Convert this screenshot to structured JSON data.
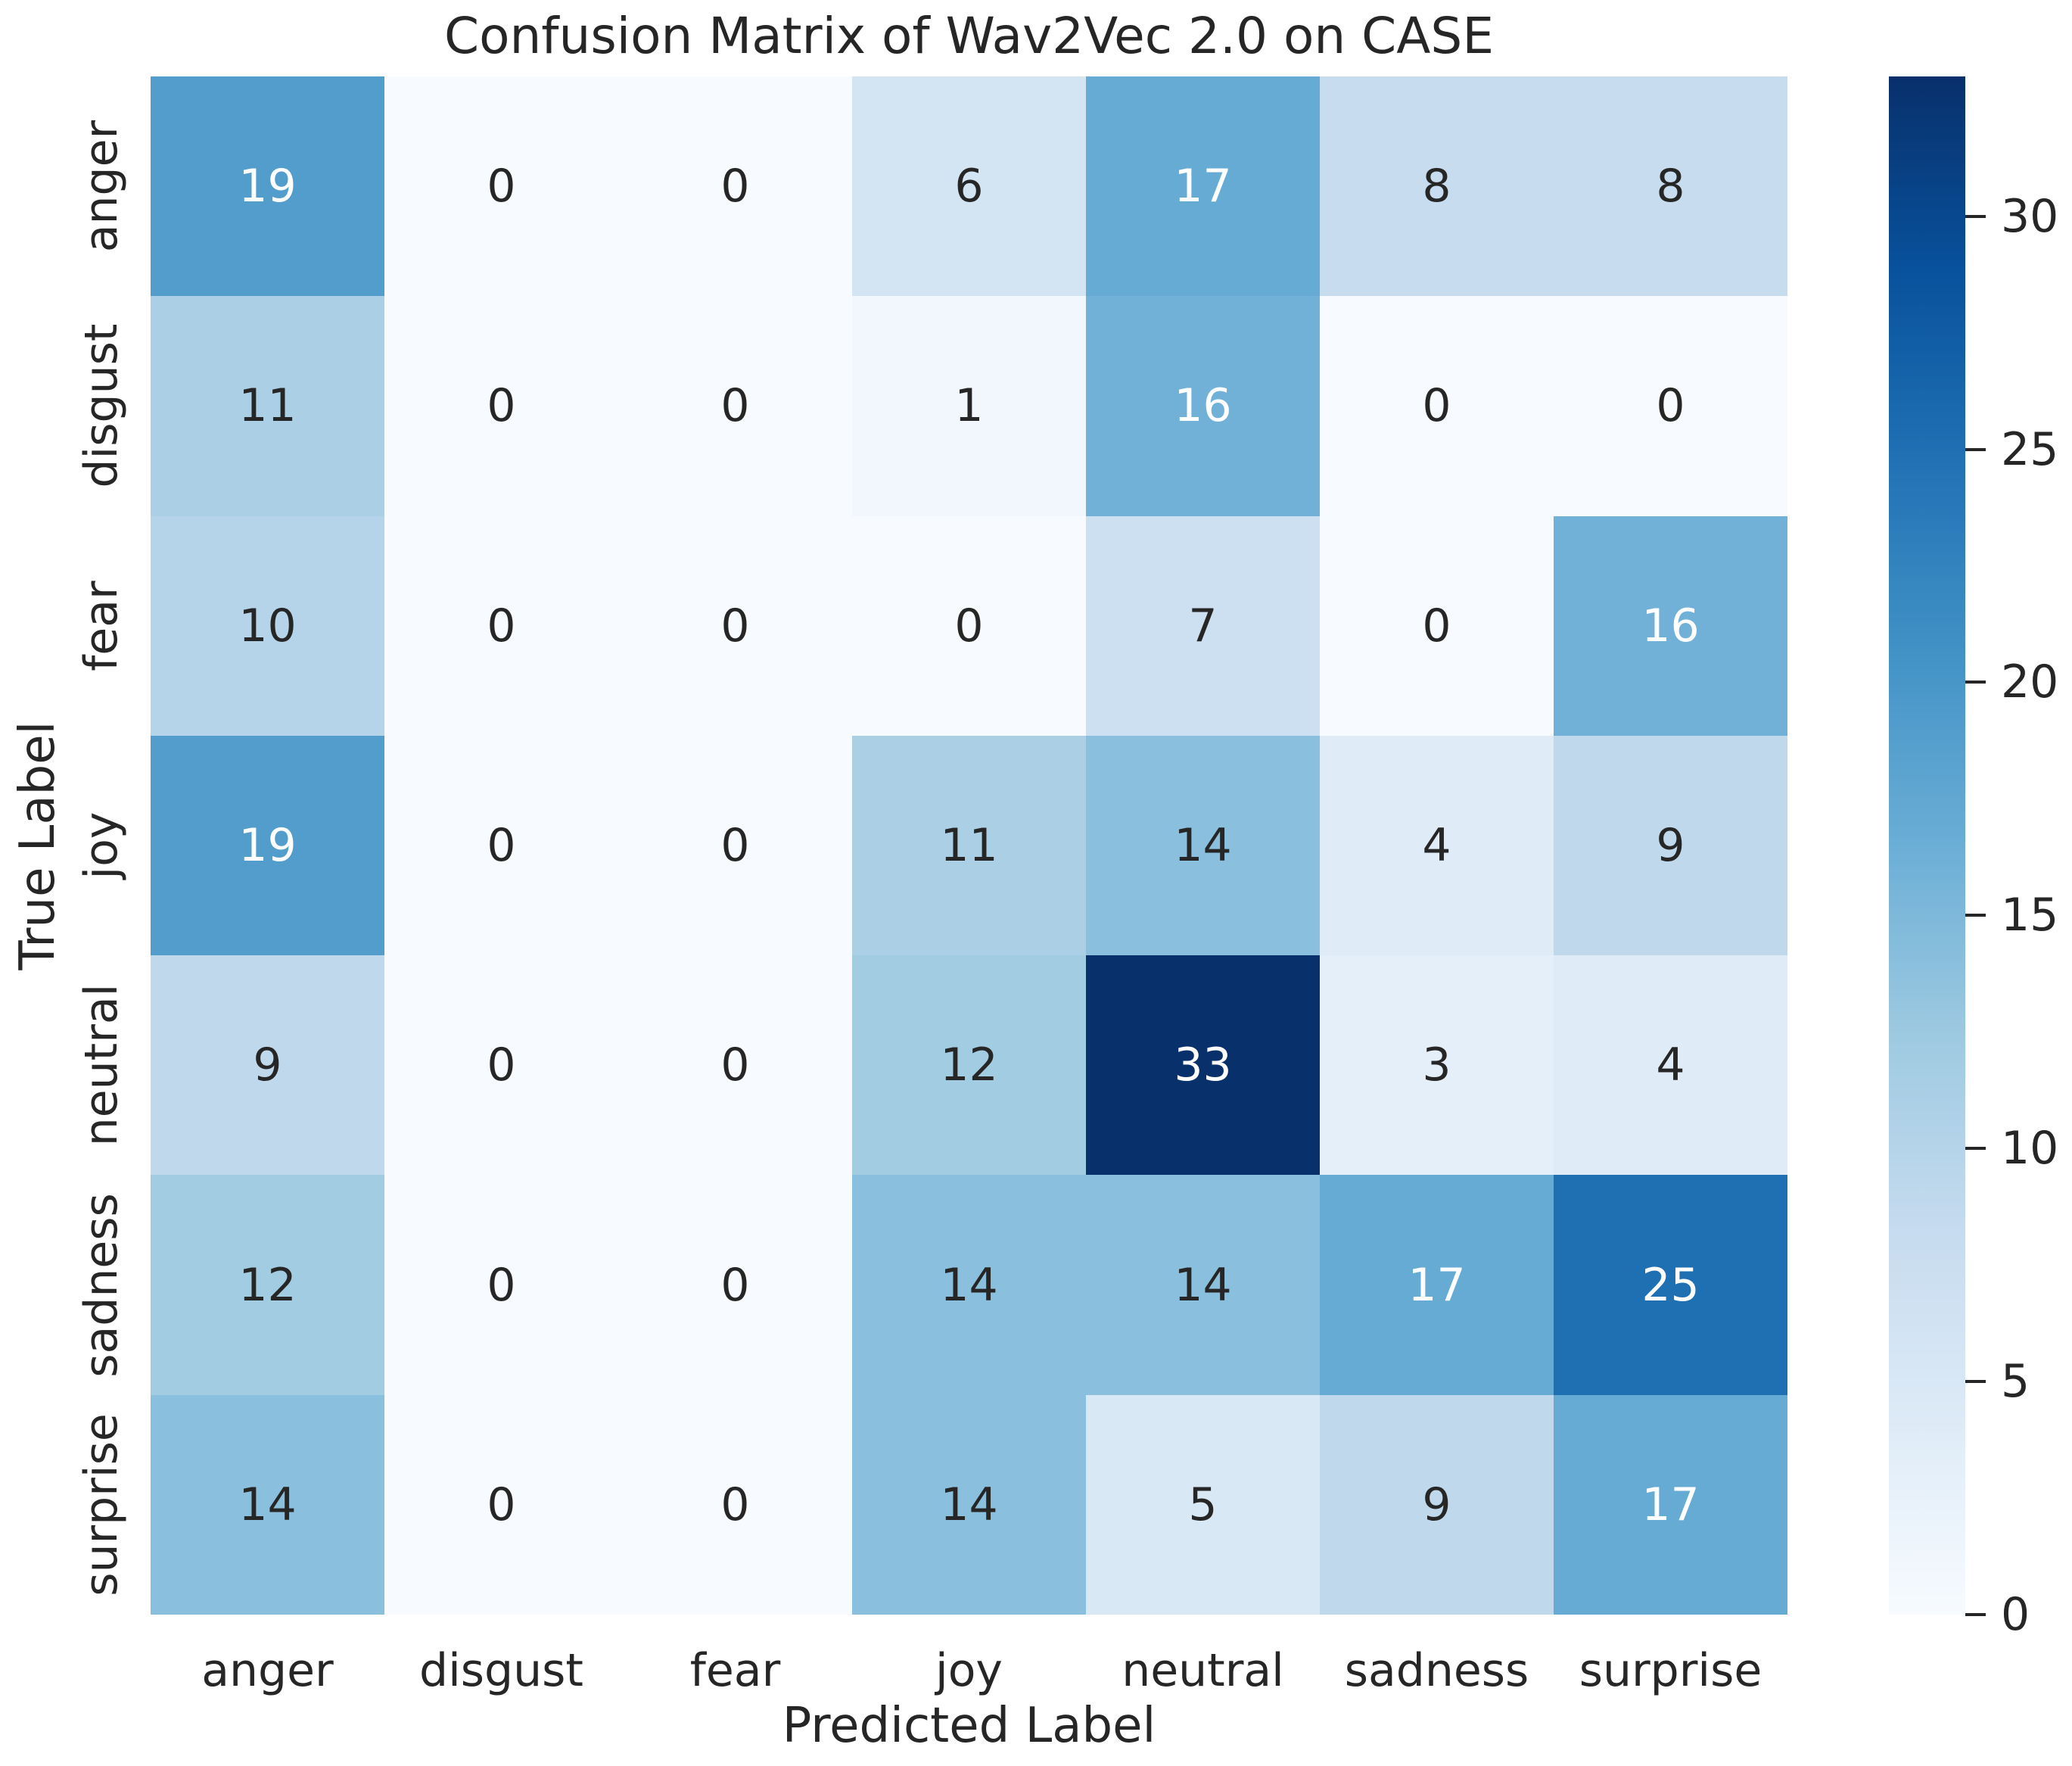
{
  "chart_data": {
    "type": "heatmap",
    "title": "Confusion Matrix of Wav2Vec 2.0 on CASE",
    "xlabel": "Predicted Label",
    "ylabel": "True Label",
    "categories": [
      "anger",
      "disgust",
      "fear",
      "joy",
      "neutral",
      "sadness",
      "surprise"
    ],
    "matrix": [
      [
        19,
        0,
        0,
        6,
        17,
        8,
        8
      ],
      [
        11,
        0,
        0,
        1,
        16,
        0,
        0
      ],
      [
        10,
        0,
        0,
        0,
        7,
        0,
        16
      ],
      [
        19,
        0,
        0,
        11,
        14,
        4,
        9
      ],
      [
        9,
        0,
        0,
        12,
        33,
        3,
        4
      ],
      [
        12,
        0,
        0,
        14,
        14,
        17,
        25
      ],
      [
        14,
        0,
        0,
        14,
        5,
        9,
        17
      ]
    ],
    "vmin": 0,
    "vmax": 33,
    "colorbar_ticks": [
      0,
      5,
      10,
      15,
      20,
      25,
      30
    ],
    "colormap": "Blues",
    "colormap_stops": [
      [
        0.0,
        "#f7fbff"
      ],
      [
        0.125,
        "#deebf7"
      ],
      [
        0.25,
        "#c6dbef"
      ],
      [
        0.375,
        "#9ecae1"
      ],
      [
        0.5,
        "#6baed6"
      ],
      [
        0.625,
        "#4292c6"
      ],
      [
        0.75,
        "#2171b5"
      ],
      [
        0.875,
        "#08519c"
      ],
      [
        1.0,
        "#08306b"
      ]
    ],
    "annotation_text_dark": "#262626",
    "annotation_text_light": "#ffffff",
    "white_text_min_value": 15,
    "legend_position": "right",
    "grid": false
  }
}
